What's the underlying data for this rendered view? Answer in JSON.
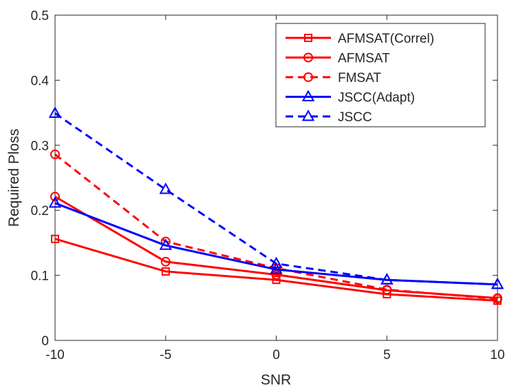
{
  "chart_data": {
    "type": "line",
    "title": "",
    "xlabel": "SNR",
    "ylabel": "Required Ploss",
    "xlim": [
      -10,
      10
    ],
    "ylim": [
      0,
      0.5
    ],
    "xticks": [
      -10,
      -5,
      0,
      5,
      10
    ],
    "xtick_labels": [
      "-10",
      "-5",
      "0",
      "5",
      "10"
    ],
    "yticks": [
      0,
      0.1,
      0.2,
      0.3,
      0.4,
      0.5
    ],
    "ytick_labels": [
      "0",
      "0.1",
      "0.2",
      "0.3",
      "0.4",
      "0.5"
    ],
    "grid": false,
    "legend_position": "top-right",
    "x": [
      -10,
      -5,
      0,
      5,
      10
    ],
    "series": [
      {
        "name": "AFMSAT(Correl)",
        "values": [
          0.156,
          0.106,
          0.093,
          0.071,
          0.061
        ],
        "color": "#ff0000",
        "dash": "solid",
        "marker": "square"
      },
      {
        "name": "AFMSAT",
        "values": [
          0.221,
          0.121,
          0.101,
          0.077,
          0.065
        ],
        "color": "#ff0000",
        "dash": "solid",
        "marker": "circle"
      },
      {
        "name": "FMSAT",
        "values": [
          0.286,
          0.152,
          0.111,
          0.078,
          0.064
        ],
        "color": "#ff0000",
        "dash": "dashed",
        "marker": "circle"
      },
      {
        "name": "JSCC(Adapt)",
        "values": [
          0.211,
          0.146,
          0.109,
          0.093,
          0.086
        ],
        "color": "#0000ff",
        "dash": "solid",
        "marker": "triangle"
      },
      {
        "name": "JSCC",
        "values": [
          0.349,
          0.232,
          0.118,
          0.093,
          0.086
        ],
        "color": "#0000ff",
        "dash": "dashed",
        "marker": "triangle"
      }
    ]
  }
}
